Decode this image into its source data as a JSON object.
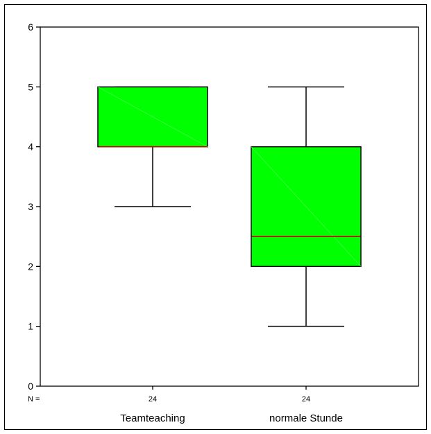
{
  "chart_data": {
    "type": "boxplot",
    "ylim": [
      0,
      6
    ],
    "yticks": [
      "0",
      "1",
      "2",
      "3",
      "4",
      "5",
      "6"
    ],
    "n_label": "N =",
    "categories": [
      {
        "name": "Teamteaching",
        "n": "24",
        "min": 3,
        "q1": 4,
        "median": 4,
        "q3": 5,
        "max": 5
      },
      {
        "name": "normale Stunde",
        "n": "24",
        "min": 1,
        "q1": 2,
        "median": 2.5,
        "q3": 4,
        "max": 5
      }
    ],
    "colors": {
      "box_fill": "#00ff00",
      "median": "#cc0000",
      "axis": "#000000"
    }
  }
}
